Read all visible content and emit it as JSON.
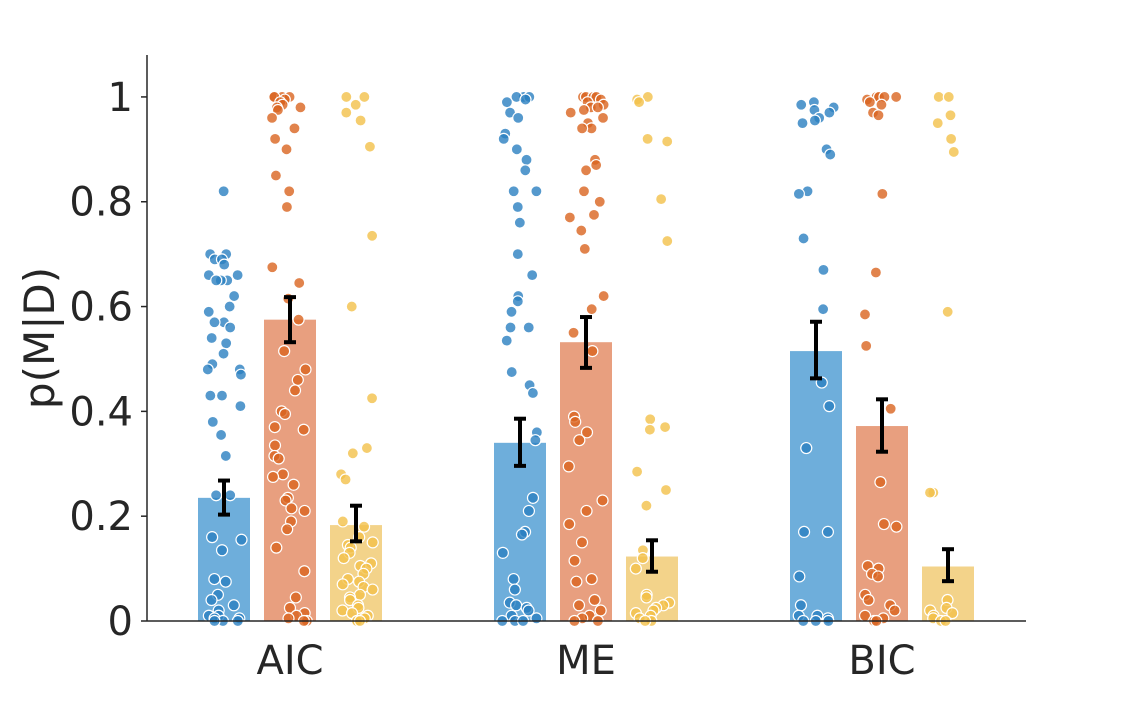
{
  "chart_data": {
    "type": "bar",
    "title": "",
    "xlabel": "",
    "ylabel": "p(M|D)",
    "ylim": [
      0,
      1.08
    ],
    "yticks": [
      {
        "value": 0,
        "label": "0"
      },
      {
        "value": 0.2,
        "label": "0.2"
      },
      {
        "value": 0.4,
        "label": "0.4"
      },
      {
        "value": 0.6,
        "label": "0.6"
      },
      {
        "value": 0.8,
        "label": "0.8"
      },
      {
        "value": 1.0,
        "label": "1"
      }
    ],
    "categories": [
      "AIC",
      "ME",
      "BIC"
    ],
    "grid": false,
    "legend": "none",
    "colors": {
      "bars": [
        "#6eaedb",
        "#e89f7f",
        "#f3d38a"
      ],
      "points": [
        "#2a7fc0",
        "#d9641f",
        "#f2c14a"
      ],
      "errorbar": "#000000"
    },
    "series": [
      {
        "values": [
          0.235,
          0.34,
          0.515
        ],
        "error_low": [
          0.203,
          0.296,
          0.463
        ],
        "error_high": [
          0.268,
          0.386,
          0.571
        ],
        "points": [
          [
            0.82,
            0.7,
            0.7,
            0.69,
            0.69,
            0.68,
            0.66,
            0.66,
            0.65,
            0.65,
            0.65,
            0.62,
            0.6,
            0.59,
            0.57,
            0.57,
            0.56,
            0.54,
            0.53,
            0.51,
            0.49,
            0.48,
            0.48,
            0.47,
            0.43,
            0.43,
            0.41,
            0.38,
            0.355,
            0.315,
            0.24,
            0.24,
            0.16,
            0.155,
            0.135,
            0.08,
            0.075,
            0.05,
            0.04,
            0.03,
            0.02,
            0.01,
            0.01,
            0.005,
            0.005,
            0.0,
            0.0,
            0.0
          ],
          [
            1.0,
            1.0,
            1.0,
            0.995,
            0.99,
            0.97,
            0.96,
            0.93,
            0.92,
            0.9,
            0.88,
            0.86,
            0.82,
            0.82,
            0.79,
            0.76,
            0.7,
            0.66,
            0.62,
            0.61,
            0.59,
            0.56,
            0.56,
            0.535,
            0.475,
            0.45,
            0.435,
            0.36,
            0.345,
            0.235,
            0.21,
            0.17,
            0.165,
            0.13,
            0.08,
            0.06,
            0.035,
            0.03,
            0.025,
            0.02,
            0.01,
            0.005,
            0.0,
            0.0,
            0.0
          ],
          [
            0.99,
            0.985,
            0.98,
            0.975,
            0.97,
            0.96,
            0.955,
            0.95,
            0.9,
            0.89,
            0.82,
            0.815,
            0.73,
            0.67,
            0.595,
            0.455,
            0.41,
            0.33,
            0.17,
            0.17,
            0.085,
            0.03,
            0.01,
            0.01,
            0.005,
            0.0,
            0.0,
            0.0
          ]
        ]
      },
      {
        "values": [
          0.575,
          0.532,
          0.372
        ],
        "error_low": [
          0.532,
          0.483,
          0.323
        ],
        "error_high": [
          0.618,
          0.58,
          0.423
        ],
        "points": [
          [
            1.0,
            1.0,
            1.0,
            1.0,
            0.995,
            0.99,
            0.985,
            0.98,
            0.98,
            0.975,
            0.96,
            0.94,
            0.92,
            0.9,
            0.85,
            0.82,
            0.79,
            0.675,
            0.645,
            0.615,
            0.575,
            0.515,
            0.48,
            0.46,
            0.44,
            0.4,
            0.395,
            0.37,
            0.365,
            0.335,
            0.315,
            0.31,
            0.28,
            0.275,
            0.26,
            0.235,
            0.23,
            0.215,
            0.21,
            0.19,
            0.175,
            0.14,
            0.095,
            0.045,
            0.025,
            0.015,
            0.01,
            0.005,
            0.0,
            0.0
          ],
          [
            1.0,
            1.0,
            1.0,
            1.0,
            0.995,
            0.99,
            0.985,
            0.98,
            0.98,
            0.975,
            0.97,
            0.96,
            0.95,
            0.94,
            0.94,
            0.88,
            0.87,
            0.86,
            0.82,
            0.8,
            0.775,
            0.77,
            0.745,
            0.71,
            0.62,
            0.595,
            0.55,
            0.515,
            0.39,
            0.38,
            0.36,
            0.345,
            0.295,
            0.23,
            0.21,
            0.185,
            0.15,
            0.115,
            0.08,
            0.075,
            0.04,
            0.03,
            0.02,
            0.01,
            0.005,
            0.0,
            0.0
          ],
          [
            1.0,
            1.0,
            1.0,
            1.0,
            0.995,
            0.99,
            0.985,
            0.97,
            0.965,
            0.815,
            0.665,
            0.585,
            0.525,
            0.405,
            0.265,
            0.185,
            0.18,
            0.105,
            0.1,
            0.09,
            0.085,
            0.05,
            0.04,
            0.03,
            0.02,
            0.01,
            0.005,
            0.0,
            0.0
          ]
        ]
      },
      {
        "values": [
          0.183,
          0.123,
          0.104
        ],
        "error_low": [
          0.152,
          0.094,
          0.076
        ],
        "error_high": [
          0.22,
          0.154,
          0.137
        ],
        "points": [
          [
            1.0,
            1.0,
            0.985,
            0.97,
            0.955,
            0.905,
            0.735,
            0.6,
            0.425,
            0.33,
            0.32,
            0.28,
            0.27,
            0.19,
            0.18,
            0.16,
            0.15,
            0.145,
            0.14,
            0.13,
            0.12,
            0.11,
            0.105,
            0.1,
            0.09,
            0.08,
            0.075,
            0.07,
            0.065,
            0.06,
            0.05,
            0.045,
            0.04,
            0.03,
            0.025,
            0.02,
            0.015,
            0.01,
            0.005,
            0.0,
            0.0,
            0.0
          ],
          [
            1.0,
            0.995,
            0.99,
            0.92,
            0.915,
            0.805,
            0.725,
            0.385,
            0.37,
            0.365,
            0.285,
            0.25,
            0.22,
            0.135,
            0.12,
            0.1,
            0.05,
            0.045,
            0.035,
            0.03,
            0.025,
            0.02,
            0.015,
            0.01,
            0.005,
            0.0,
            0.0
          ],
          [
            1.0,
            1.0,
            0.965,
            0.95,
            0.92,
            0.895,
            0.59,
            0.245,
            0.245,
            0.04,
            0.025,
            0.02,
            0.015,
            0.01,
            0.005,
            0.0,
            0.0
          ]
        ]
      }
    ]
  }
}
